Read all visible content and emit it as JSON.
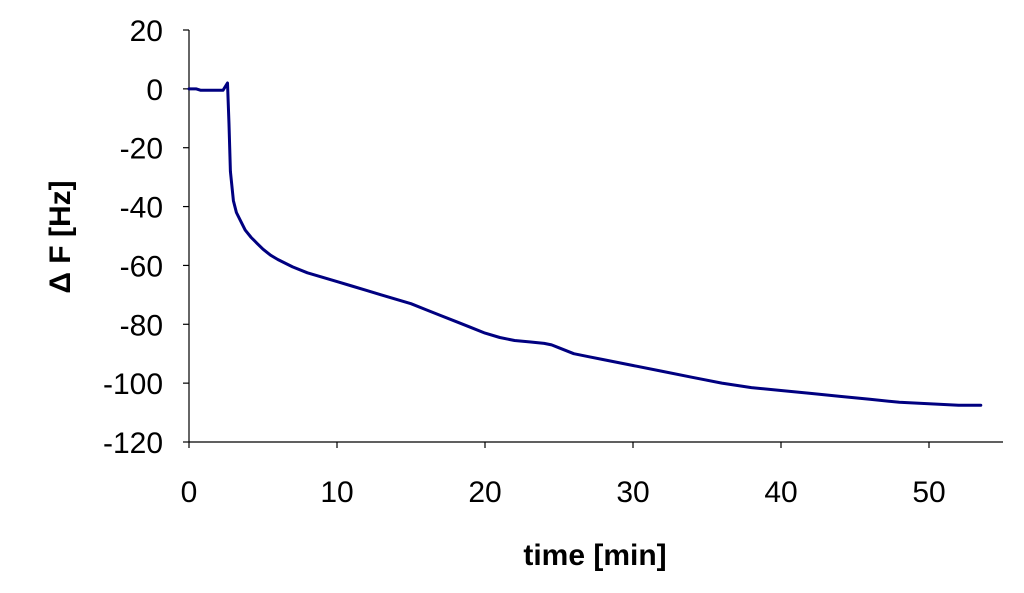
{
  "chart_data": {
    "type": "line",
    "title": "",
    "xlabel": "time [min]",
    "ylabel": "Δ F [Hz]",
    "xlim": [
      0,
      55
    ],
    "ylim": [
      -120,
      20
    ],
    "x_ticks": [
      0,
      10,
      20,
      30,
      40,
      50
    ],
    "y_ticks": [
      20,
      0,
      -20,
      -40,
      -60,
      -80,
      -100,
      -120
    ],
    "x_tick_labels": [
      "0",
      "10",
      "20",
      "30",
      "40",
      "50"
    ],
    "y_tick_labels": [
      "20",
      "0",
      "-20",
      "-40",
      "-60",
      "-80",
      "-100",
      "-120"
    ],
    "grid": false,
    "legend": "none",
    "series": [
      {
        "color": "#000080",
        "x": [
          0,
          0.5,
          0.8,
          1.2,
          1.8,
          2.3,
          2.6,
          2.7,
          2.75,
          2.8,
          2.9,
          3.0,
          3.2,
          3.5,
          3.8,
          4.2,
          4.6,
          5.0,
          5.5,
          6.0,
          7.0,
          8.0,
          9.0,
          10.0,
          11.0,
          12.0,
          13.0,
          14.0,
          15.0,
          16.0,
          17.0,
          18.0,
          19.0,
          20.0,
          21.0,
          22.0,
          23.0,
          24.0,
          24.5,
          25.0,
          26.0,
          27.0,
          28.0,
          30.0,
          32.0,
          34.0,
          36.0,
          38.0,
          40.0,
          42.0,
          44.0,
          46.0,
          48.0,
          50.0,
          52.0,
          53.5
        ],
        "y": [
          0,
          0,
          -0.5,
          -0.5,
          -0.5,
          -0.5,
          2,
          -12,
          -20,
          -28,
          -33,
          -38,
          -42,
          -45,
          -48,
          -50.5,
          -52.5,
          -54.5,
          -56.5,
          -58,
          -60.5,
          -62.5,
          -64,
          -65.5,
          -67,
          -68.5,
          -70,
          -71.5,
          -73,
          -75,
          -77,
          -79,
          -81,
          -83,
          -84.5,
          -85.5,
          -86,
          -86.5,
          -87,
          -88,
          -90,
          -91,
          -92,
          -94,
          -96,
          -98,
          -100,
          -101.5,
          -102.5,
          -103.5,
          -104.5,
          -105.5,
          -106.5,
          -107,
          -107.5,
          -107.5
        ]
      }
    ]
  }
}
